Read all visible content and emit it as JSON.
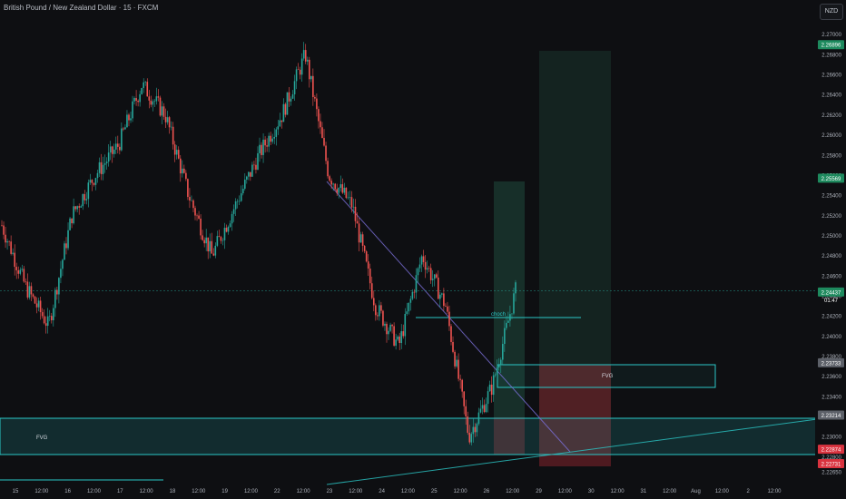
{
  "header": {
    "symbol_title": "British Pound / New Zealand Dollar · 15 · FXCM",
    "currency_button": "NZD"
  },
  "annotations": {
    "choch": "choch",
    "fvg_upper": "FVG",
    "fvg_lower": "FVG"
  },
  "price_badges": {
    "last_price": "2.24437",
    "countdown": "01:47",
    "target_top": "2.26896",
    "target_mid": "2.25569",
    "level_a": "2.23733",
    "level_b": "2.23214",
    "stop_a": "2.22874",
    "stop_b": "2.22731"
  },
  "chart_data": {
    "type": "line",
    "series": [
      {
        "x": [
          "2025-07-14 12:00",
          "2025-07-15 00:00",
          "2025-07-15 12:00",
          "2025-07-16 00:00",
          "2025-07-16 12:00",
          "2025-07-17 00:00",
          "2025-07-17 12:00",
          "2025-07-18 00:00",
          "2025-07-18 12:00",
          "2025-07-19 00:00",
          "2025-07-21 00:00",
          "2025-07-21 12:00",
          "2025-07-22 00:00",
          "2025-07-22 12:00",
          "2025-07-23 00:00",
          "2025-07-23 12:00",
          "2025-07-24 00:00",
          "2025-07-24 12:00",
          "2025-07-25 00:00",
          "2025-07-25 12:00",
          "2025-07-26 00:00",
          "2025-07-26 12:00",
          "2025-07-27 00:00"
        ],
        "values": [
          2.251,
          2.245,
          2.241,
          2.252,
          2.256,
          2.259,
          2.265,
          2.262,
          2.254,
          2.248,
          2.253,
          2.258,
          2.262,
          2.268,
          2.256,
          2.253,
          2.243,
          2.239,
          2.248,
          2.243,
          2.23,
          2.235,
          2.2445
        ]
      }
    ],
    "ylim": [
      2.2265,
      2.2725
    ],
    "y_ticks": [
      "2.27000",
      "2.26800",
      "2.26600",
      "2.26400",
      "2.26200",
      "2.26000",
      "2.25800",
      "2.25600",
      "2.25400",
      "2.25200",
      "2.25000",
      "2.24800",
      "2.24600",
      "2.24400",
      "2.24200",
      "2.24000",
      "2.23800",
      "2.23600",
      "2.23400",
      "2.23200",
      "2.23000",
      "2.22800",
      "2.22650"
    ],
    "x_ticks": [
      "15",
      "12:00",
      "16",
      "12:00",
      "17",
      "12:00",
      "18",
      "12:00",
      "19",
      "12:00",
      "22",
      "12:00",
      "23",
      "12:00",
      "24",
      "12:00",
      "25",
      "12:00",
      "26",
      "12:00",
      "29",
      "12:00",
      "30",
      "12:00",
      "31",
      "12:00",
      "Aug",
      "12:00",
      "2",
      "12:00"
    ],
    "colors": {
      "up": "#26a69a",
      "down": "#ef5350",
      "fvg": "#2bc7c7",
      "target": "#1f4a3d",
      "stop": "#6a1f26"
    },
    "grid": false
  }
}
